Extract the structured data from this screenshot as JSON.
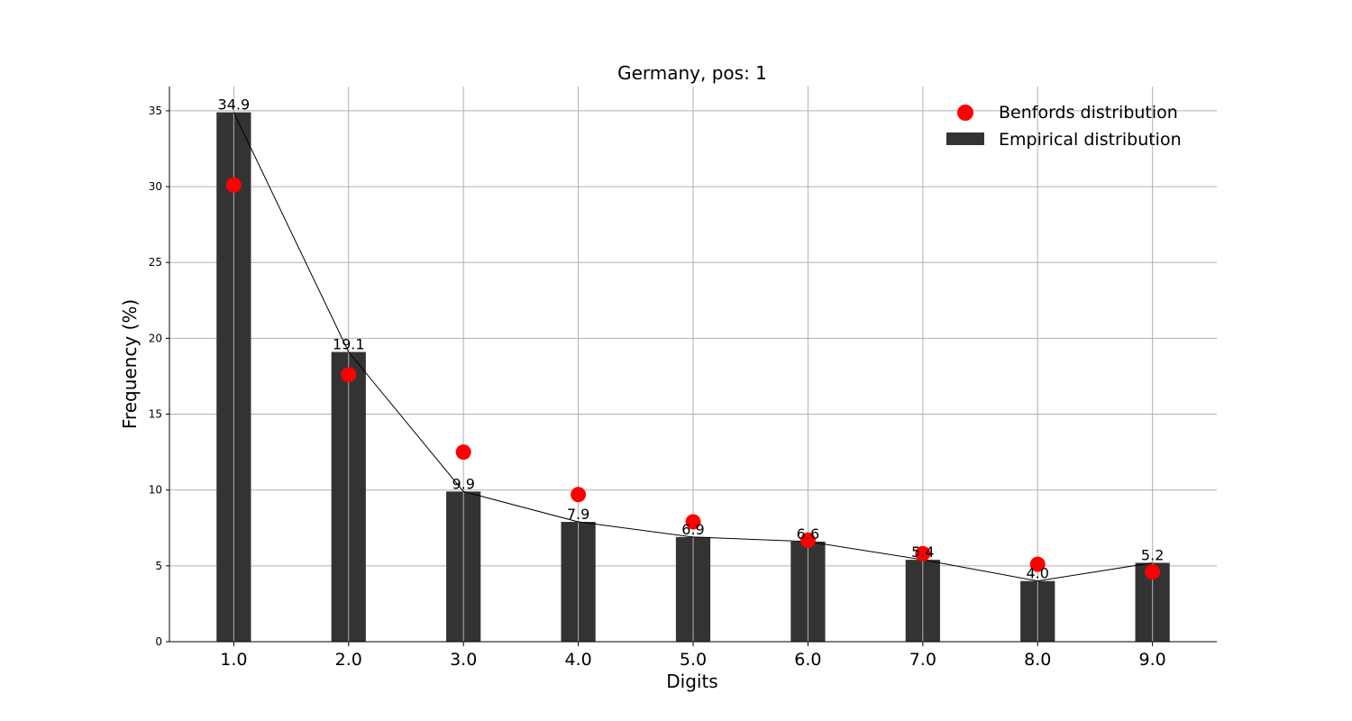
{
  "chart_data": {
    "type": "bar",
    "title": "Germany, pos: 1",
    "xlabel": "Digits",
    "ylabel": "Frequency (%)",
    "categories": [
      "1.0",
      "2.0",
      "3.0",
      "4.0",
      "5.0",
      "6.0",
      "7.0",
      "8.0",
      "9.0"
    ],
    "x": [
      1,
      2,
      3,
      4,
      5,
      6,
      7,
      8,
      9
    ],
    "ylim": [
      0,
      36.6
    ],
    "xlim": [
      0.44,
      9.56
    ],
    "yticks": [
      0,
      5,
      10,
      15,
      20,
      25,
      30,
      35
    ],
    "grid": true,
    "legend_position": "top-right",
    "series": [
      {
        "name": "Empirical distribution",
        "kind": "bar",
        "values": [
          34.9,
          19.1,
          9.9,
          7.9,
          6.9,
          6.6,
          5.4,
          4.0,
          5.2
        ],
        "labels": [
          "34.9",
          "19.1",
          "9.9",
          "7.9",
          "6.9",
          "6.6",
          "5.4",
          "4.0",
          "5.2"
        ],
        "color": "#333333"
      },
      {
        "name": "Benfords distribution",
        "kind": "scatter",
        "values": [
          30.1,
          17.6,
          12.5,
          9.7,
          7.9,
          6.7,
          5.8,
          5.1,
          4.6
        ],
        "color": "#ff0000"
      }
    ],
    "line": {
      "values": [
        34.9,
        19.1,
        9.9,
        7.9,
        6.9,
        6.6,
        5.4,
        4.0,
        5.2
      ],
      "color": "#000000"
    }
  }
}
